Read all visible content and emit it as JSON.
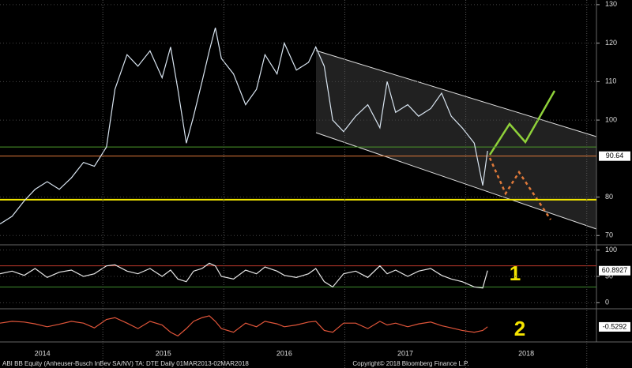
{
  "chart_data": [
    {
      "type": "line",
      "color": "#d8e4f0",
      "x": [
        2014.15,
        2014.25,
        2014.35,
        2014.44,
        2014.54,
        2014.64,
        2014.74,
        2014.84,
        2014.93,
        2015.03,
        2015.1,
        2015.2,
        2015.29,
        2015.39,
        2015.49,
        2015.56,
        2015.62,
        2015.69,
        2015.75,
        2015.82,
        2015.88,
        2015.93,
        2015.98,
        2016.08,
        2016.18,
        2016.27,
        2016.34,
        2016.44,
        2016.5,
        2016.6,
        2016.7,
        2016.76,
        2016.83,
        2016.9,
        2016.99,
        2017.09,
        2017.19,
        2017.29,
        2017.35,
        2017.42,
        2017.52,
        2017.61,
        2017.71,
        2017.8,
        2017.88,
        2017.97,
        2018.07,
        2018.14,
        2018.18
      ],
      "values": [
        73,
        75,
        79,
        82,
        84,
        82,
        85,
        89,
        88,
        93,
        108,
        117,
        114,
        118,
        111,
        119,
        108,
        94,
        101,
        110,
        118,
        124,
        116,
        112,
        104,
        108,
        117,
        112,
        120,
        113,
        115,
        119,
        114,
        100,
        97,
        101,
        104,
        98,
        110,
        102,
        104,
        101,
        103,
        107,
        101,
        98,
        94,
        83,
        92
      ],
      "xlim": [
        2014.15,
        2019.08
      ],
      "ylim": [
        68,
        131
      ],
      "yticks": [
        70,
        80,
        100,
        110,
        120,
        130
      ],
      "levels": [
        {
          "value": 93,
          "color": "#4c9a2a"
        },
        {
          "value": 79.3,
          "color": "#f2e600"
        },
        {
          "value": 90.64,
          "color": "#e07a3a"
        }
      ],
      "last_label": 90.64
    },
    {
      "type": "line",
      "color": "#e6e6e6",
      "x": [
        2014.15,
        2014.25,
        2014.35,
        2014.44,
        2014.54,
        2014.64,
        2014.74,
        2014.84,
        2014.93,
        2015.03,
        2015.1,
        2015.2,
        2015.29,
        2015.39,
        2015.49,
        2015.56,
        2015.62,
        2015.69,
        2015.75,
        2015.82,
        2015.88,
        2015.93,
        2015.98,
        2016.08,
        2016.18,
        2016.27,
        2016.34,
        2016.44,
        2016.5,
        2016.6,
        2016.7,
        2016.76,
        2016.83,
        2016.9,
        2016.99,
        2017.09,
        2017.19,
        2017.29,
        2017.35,
        2017.42,
        2017.52,
        2017.61,
        2017.71,
        2017.8,
        2017.88,
        2017.97,
        2018.07,
        2018.14,
        2018.18
      ],
      "values": [
        55,
        60,
        52,
        65,
        48,
        58,
        62,
        50,
        55,
        70,
        72,
        60,
        55,
        65,
        50,
        62,
        45,
        40,
        60,
        65,
        75,
        70,
        50,
        45,
        62,
        55,
        68,
        60,
        52,
        48,
        55,
        65,
        40,
        30,
        55,
        60,
        48,
        70,
        55,
        62,
        50,
        60,
        65,
        52,
        45,
        40,
        30,
        28,
        61
      ],
      "xlim": [
        2014.15,
        2019.08
      ],
      "ylim": [
        -10,
        107
      ],
      "yticks": [
        0,
        50,
        100
      ],
      "levels": [
        {
          "value": 70,
          "color": "#c0392b"
        },
        {
          "value": 30,
          "color": "#3e8e2e"
        }
      ],
      "last_label": 60.8927,
      "annotation": "1"
    },
    {
      "type": "line",
      "color": "#e0553a",
      "x": [
        2014.15,
        2014.25,
        2014.35,
        2014.44,
        2014.54,
        2014.64,
        2014.74,
        2014.84,
        2014.93,
        2015.03,
        2015.1,
        2015.2,
        2015.29,
        2015.39,
        2015.49,
        2015.56,
        2015.62,
        2015.69,
        2015.75,
        2015.82,
        2015.88,
        2015.93,
        2015.98,
        2016.08,
        2016.18,
        2016.27,
        2016.34,
        2016.44,
        2016.5,
        2016.6,
        2016.7,
        2016.76,
        2016.83,
        2016.9,
        2016.99,
        2017.09,
        2017.19,
        2017.29,
        2017.35,
        2017.42,
        2017.52,
        2017.61,
        2017.71,
        2017.8,
        2017.88,
        2017.97,
        2018.07,
        2018.14,
        2018.18
      ],
      "values": [
        0.5,
        1,
        0.8,
        0.3,
        -0.5,
        0.2,
        1,
        0.5,
        -0.8,
        1.5,
        2,
        0.5,
        -1,
        1,
        0,
        -2,
        -3,
        -1,
        1,
        2,
        2.5,
        1,
        -1,
        -2,
        0.5,
        -0.5,
        1,
        0.3,
        -0.5,
        0,
        0.8,
        1,
        -1.5,
        -2,
        0.5,
        0.5,
        -1,
        1,
        0,
        0.5,
        -0.5,
        0.3,
        0.8,
        -0.2,
        -0.8,
        -1.5,
        -2,
        -1.5,
        -0.5
      ],
      "xlim": [
        2014.15,
        2019.08
      ],
      "ylim": [
        -4,
        4
      ],
      "last_label": -0.5292,
      "annotation": "2",
      "xticks": [
        {
          "value": 2014.5,
          "label": "2014"
        },
        {
          "value": 2015.5,
          "label": "2015"
        },
        {
          "value": 2016.5,
          "label": "2016"
        },
        {
          "value": 2017.5,
          "label": "2017"
        },
        {
          "value": 2018.5,
          "label": "2018"
        }
      ],
      "xgrid": [
        2015,
        2016,
        2017,
        2018,
        2019
      ]
    }
  ],
  "footer": {
    "left": "ABI BB Equity (Anheuser-Busch InBev SA/NV) TA: DTE  Daily 01MAR2013-02MAR2018",
    "center": "Copyright© 2018 Bloomberg Finance L.P."
  }
}
